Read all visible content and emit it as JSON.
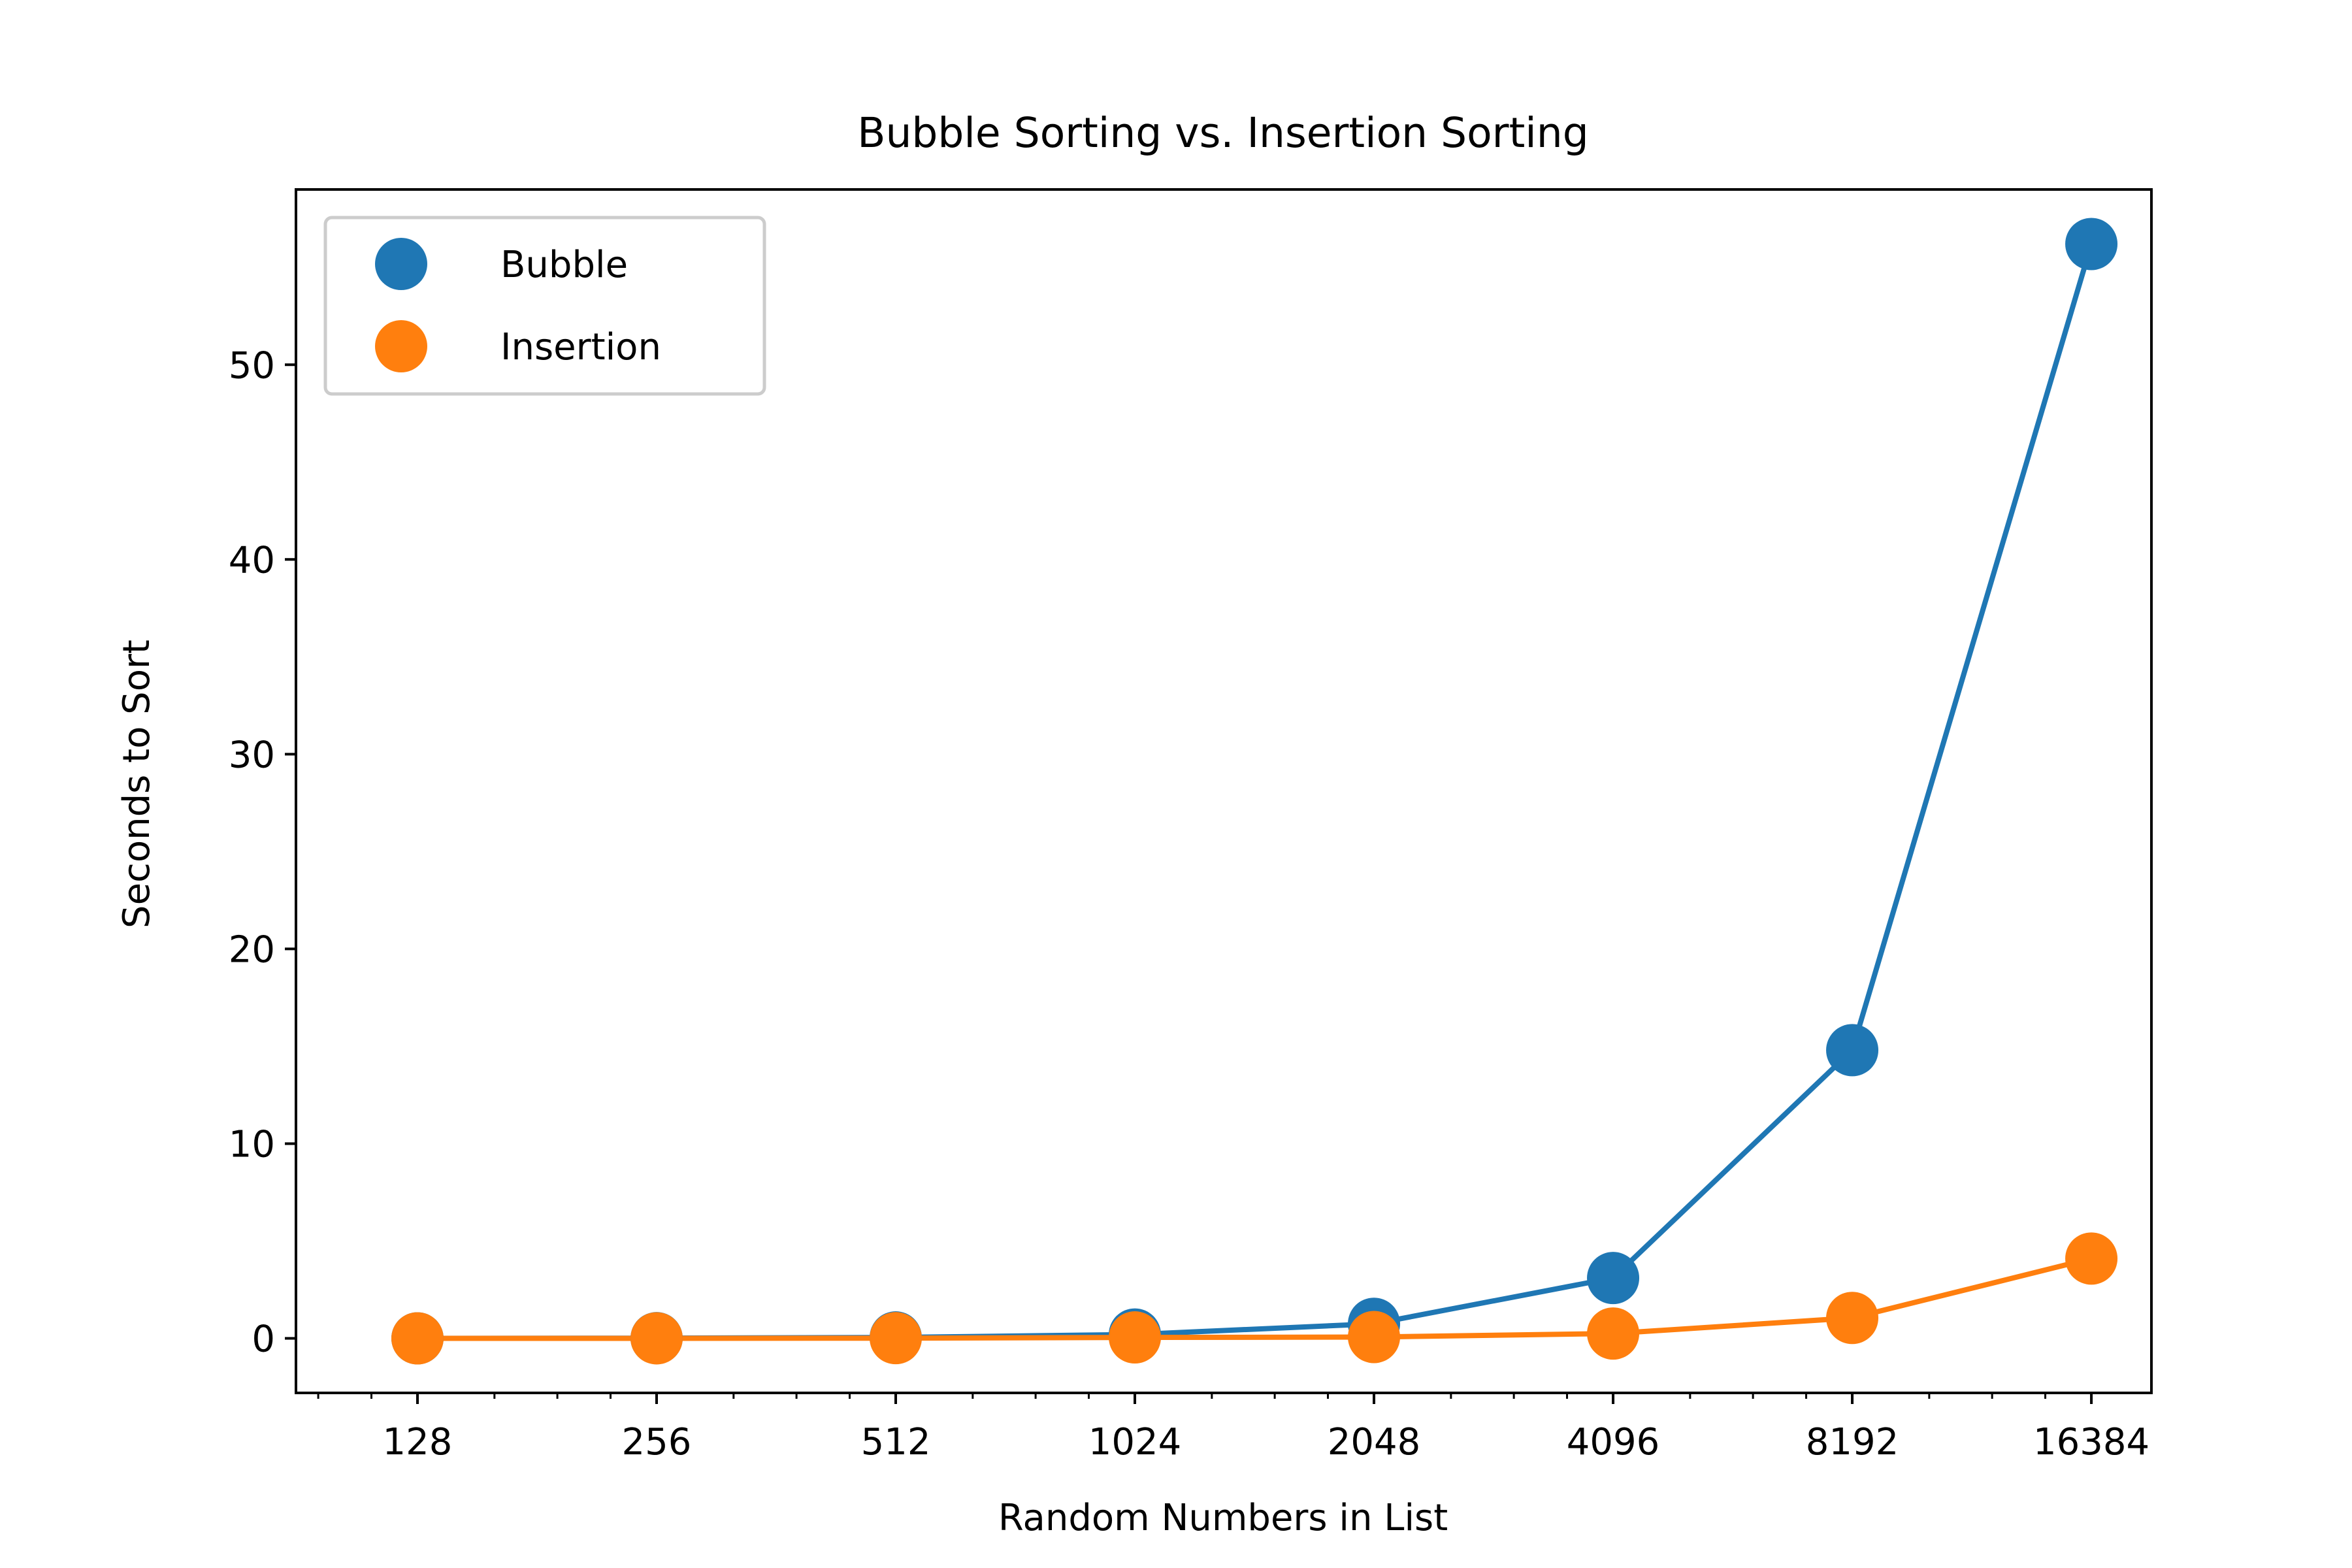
{
  "chart_data": {
    "type": "line",
    "title": "Bubble Sorting vs. Insertion Sorting",
    "xlabel": "Random Numbers in List",
    "ylabel": "Seconds to Sort",
    "x_scale": "log2",
    "x": [
      128,
      256,
      512,
      1024,
      2048,
      4096,
      8192,
      16384
    ],
    "x_tick_labels": [
      "128",
      "256",
      "512",
      "1024",
      "2048",
      "4096",
      "8192",
      "16384"
    ],
    "y_ticks": [
      0,
      10,
      20,
      30,
      40,
      50
    ],
    "y_tick_labels": [
      "0",
      "10",
      "20",
      "30",
      "40",
      "50"
    ],
    "ylim": [
      -2.8,
      59
    ],
    "xlim": [
      90,
      19500
    ],
    "grid": false,
    "legend_position": "upper left",
    "series": [
      {
        "name": "Bubble",
        "color": "#1f77b4",
        "values": [
          0.003,
          0.012,
          0.05,
          0.2,
          0.75,
          3.1,
          14.8,
          56.2
        ]
      },
      {
        "name": "Insertion",
        "color": "#ff7f0e",
        "values": [
          0.001,
          0.003,
          0.012,
          0.05,
          0.07,
          0.25,
          1.05,
          4.1
        ]
      }
    ]
  }
}
